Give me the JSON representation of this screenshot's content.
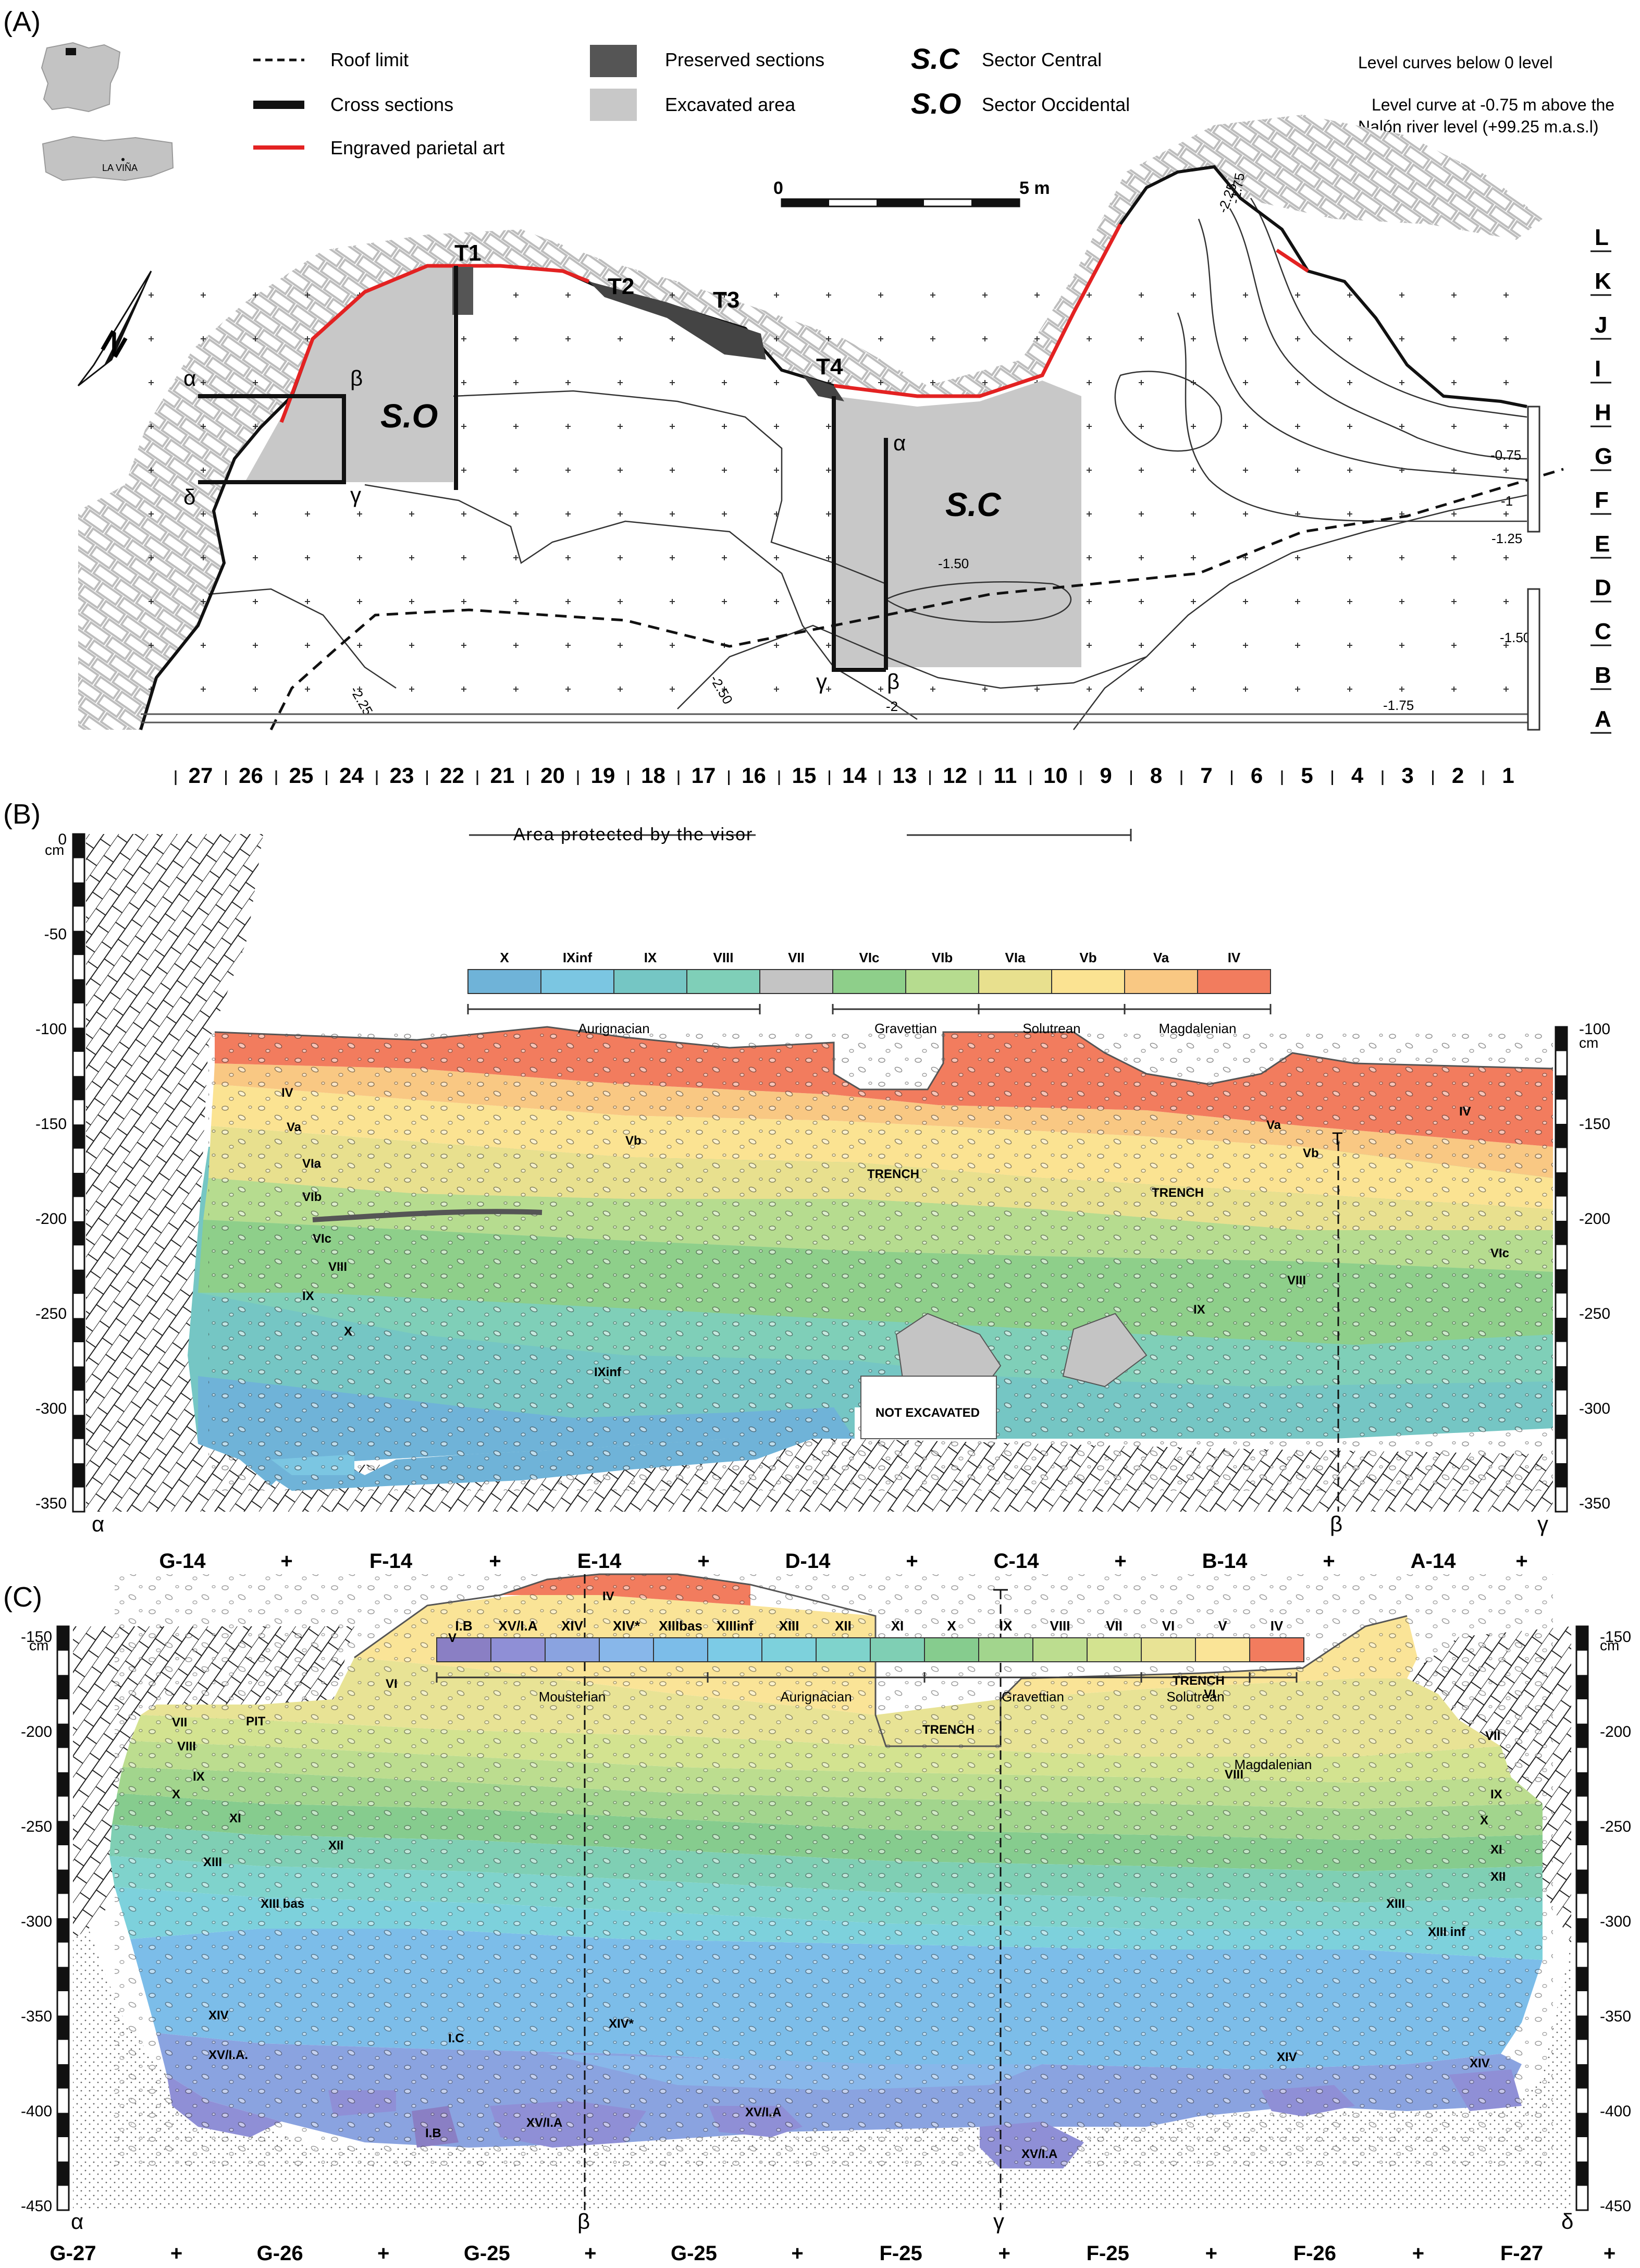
{
  "panels": {
    "a": "(A)",
    "b": "(B)",
    "c": "(C)"
  },
  "map_legend": {
    "roof_limit": "Roof limit",
    "cross_sections": "Cross sections",
    "engraved_art": "Engraved parietal art",
    "preserved_sections": "Preserved sections",
    "excavated_area": "Excavated area",
    "sc_code": "S.C",
    "sc_name": "Sector Central",
    "so_code": "S.O",
    "so_name": "Sector Occidental",
    "level_curves_note": "Level curves below 0 level",
    "level_curve_ref_1": "Level curve at -0.75 m above the",
    "level_curve_ref_2": "Nalón river level (+99.25 m.a.s.l)",
    "scale_zero": "0",
    "scale_five": "5 m",
    "inset_site": "LA VIÑA",
    "north": "N",
    "colors": {
      "roof_limit": "#111111",
      "cross_sections": "#111111",
      "engraved_art": "#e32222",
      "preserved": "#555555",
      "excavated": "#c8c8c8"
    }
  },
  "map": {
    "trenches": [
      "T1",
      "T2",
      "T3",
      "T4"
    ],
    "sectors": {
      "occidental": "S.O",
      "central": "S.C"
    },
    "section_points": {
      "alpha": "α",
      "beta": "β",
      "gamma": "γ",
      "delta": "δ"
    },
    "row_letters": [
      "L",
      "K",
      "J",
      "I",
      "H",
      "G",
      "F",
      "E",
      "D",
      "C",
      "B",
      "A"
    ],
    "column_numbers": [
      "27",
      "26",
      "25",
      "24",
      "23",
      "22",
      "21",
      "20",
      "19",
      "18",
      "17",
      "16",
      "15",
      "14",
      "13",
      "12",
      "11",
      "10",
      "9",
      "8",
      "7",
      "6",
      "5",
      "4",
      "3",
      "2",
      "1"
    ],
    "contours": [
      "-0.75",
      "-1",
      "-1.25",
      "-1.50",
      "-1.75",
      "-2",
      "-2.25",
      "-2.50",
      "-2.25",
      "-1.75",
      "-1.50"
    ]
  },
  "section_b": {
    "header": "Area protected by the visor",
    "y_unit": "cm",
    "left_ticks": [
      "0",
      "-50",
      "-100",
      "-150",
      "-200",
      "-250",
      "-300",
      "-350"
    ],
    "right_ticks": [
      "-100",
      "-150",
      "-200",
      "-250",
      "-300",
      "-350"
    ],
    "color_bar": [
      {
        "label": "X",
        "color": "#6fb3d8"
      },
      {
        "label": "IXinf",
        "color": "#7bc6e2"
      },
      {
        "label": "IX",
        "color": "#75c6c4"
      },
      {
        "label": "VIII",
        "color": "#7fcfb8"
      },
      {
        "label": "VII",
        "color": "#c4c4c4"
      },
      {
        "label": "VIc",
        "color": "#8ecf8a"
      },
      {
        "label": "VIb",
        "color": "#b6dc8f"
      },
      {
        "label": "VIa",
        "color": "#e8e08e"
      },
      {
        "label": "Vb",
        "color": "#fbe392"
      },
      {
        "label": "Va",
        "color": "#f9c883"
      },
      {
        "label": "IV",
        "color": "#f27c5e"
      }
    ],
    "periods": [
      "Aurignacian",
      "Gravettian",
      "Solutrean",
      "Magdalenian"
    ],
    "annotations": [
      "TRENCH",
      "TRENCH",
      "NOT EXCAVATED"
    ],
    "layer_labels": [
      "IV",
      "Va",
      "Vb",
      "VIa",
      "VIb",
      "VIc",
      "VIII",
      "IX",
      "X",
      "IXinf",
      "IV",
      "Va",
      "Vb",
      "VIc",
      "VIII",
      "IX"
    ],
    "squares": [
      "G-14",
      "F-14",
      "E-14",
      "D-14",
      "C-14",
      "B-14",
      "A-14"
    ],
    "marks": [
      "α",
      "β",
      "γ"
    ],
    "plus": "+"
  },
  "section_c": {
    "y_unit": "cm",
    "left_ticks": [
      "-150",
      "-200",
      "-250",
      "-300",
      "-350",
      "-400",
      "-450"
    ],
    "right_ticks": [
      "-150",
      "-200",
      "-250",
      "-300",
      "-350",
      "-400",
      "-450"
    ],
    "color_bar": [
      {
        "label": "I.B",
        "color": "#8a7fc4"
      },
      {
        "label": "XV/I.A",
        "color": "#8f8fd6"
      },
      {
        "label": "XIV",
        "color": "#8aa3e0"
      },
      {
        "label": "XIV*",
        "color": "#88b7ea"
      },
      {
        "label": "XIIIbas",
        "color": "#7cbde9"
      },
      {
        "label": "XIIIinf",
        "color": "#7ccbe6"
      },
      {
        "label": "XIII",
        "color": "#7dd1dc"
      },
      {
        "label": "XII",
        "color": "#7fd3cc"
      },
      {
        "label": "XI",
        "color": "#7fcfb4"
      },
      {
        "label": "X",
        "color": "#86cc8e"
      },
      {
        "label": "IX",
        "color": "#a2d58d"
      },
      {
        "label": "VIII",
        "color": "#bcdd8f"
      },
      {
        "label": "VII",
        "color": "#d3e390"
      },
      {
        "label": "VI",
        "color": "#e8e395"
      },
      {
        "label": "V",
        "color": "#fae497"
      },
      {
        "label": "IV",
        "color": "#f27c5e"
      }
    ],
    "periods": [
      "Mousterian",
      "Aurignacian",
      "Gravettian",
      "Solutrean",
      "Magdalenian"
    ],
    "annotations": [
      "PIT",
      "TRENCH",
      "TRENCH"
    ],
    "layer_labels": [
      "IV",
      "V",
      "VI",
      "VII",
      "VIII",
      "IX",
      "X",
      "XI",
      "XII",
      "XIII",
      "XIII bas",
      "XIV",
      "XV/I.A.",
      "I.C",
      "I.B",
      "XV/I.A",
      "XIV*",
      "XV/I.A",
      "XV/I.A",
      "XIV",
      "XIV",
      "VI",
      "VII",
      "VIII",
      "IX",
      "X",
      "XI",
      "XII",
      "XIII",
      "XIII inf"
    ],
    "squares": [
      "G-27",
      "G-26",
      "G-25",
      "G-25",
      "F-25",
      "F-25",
      "F-26",
      "F-27"
    ],
    "marks": [
      "α",
      "β",
      "γ",
      "δ"
    ],
    "plus": "+"
  }
}
